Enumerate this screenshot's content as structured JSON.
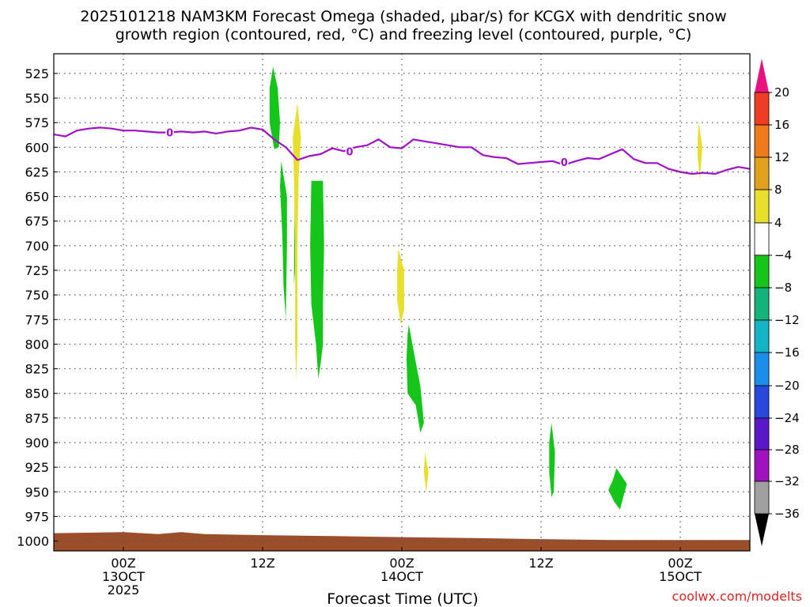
{
  "title": {
    "line1": "2025101218 NAM3KM Forecast Omega (shaded, μbar/s) for KCGX with dendritic snow",
    "line2": "growth region (contoured, red, °C) and freezing level (contoured, purple, °C)"
  },
  "credit": "coolwx.com/modelts",
  "chart_data": {
    "type": "heatmap",
    "xlabel": "Forecast Time (UTC)",
    "ylabel": "",
    "x_unit": "forecast hour from 2025-10-12 18Z",
    "xlim": [
      0,
      60
    ],
    "x_ticks": [
      {
        "hour": 6,
        "lines": [
          "00Z",
          "13OCT",
          "2025"
        ]
      },
      {
        "hour": 18,
        "lines": [
          "12Z"
        ]
      },
      {
        "hour": 30,
        "lines": [
          "00Z",
          "14OCT"
        ]
      },
      {
        "hour": 42,
        "lines": [
          "12Z"
        ]
      },
      {
        "hour": 54,
        "lines": [
          "00Z",
          "15OCT"
        ]
      }
    ],
    "ylim": [
      1010,
      505
    ],
    "y_ticks": [
      525,
      550,
      575,
      600,
      625,
      650,
      675,
      700,
      725,
      750,
      775,
      800,
      825,
      850,
      875,
      900,
      925,
      950,
      975,
      1000
    ],
    "grid": true,
    "colorbar": {
      "labels": [
        "20",
        "16",
        "12",
        "8",
        "4",
        "−4",
        "−8",
        "−12",
        "−16",
        "−20",
        "−24",
        "−28",
        "−32",
        "−36"
      ],
      "bands": [
        {
          "range": "> 20",
          "color": "#e8127e"
        },
        {
          "range": "16 to 20",
          "color": "#f03c24"
        },
        {
          "range": "12 to 16",
          "color": "#ee7a1c"
        },
        {
          "range": "8 to 12",
          "color": "#e0a21c"
        },
        {
          "range": "4 to 8",
          "color": "#e6e02c"
        },
        {
          "range": "-4 to 4",
          "color": "#ffffff"
        },
        {
          "range": "-8 to -4",
          "color": "#16c51a"
        },
        {
          "range": "-12 to -8",
          "color": "#12b47c"
        },
        {
          "range": "-16 to -12",
          "color": "#14b4c4"
        },
        {
          "range": "-20 to -16",
          "color": "#1a8ee8"
        },
        {
          "range": "-24 to -20",
          "color": "#2a48de"
        },
        {
          "range": "-28 to -24",
          "color": "#5a18c8"
        },
        {
          "range": "-32 to -28",
          "color": "#a012c0"
        },
        {
          "range": "-36 to -32",
          "color": "#a0a0a0"
        },
        {
          "range": "< -36",
          "color": "#000000"
        }
      ]
    },
    "series": [
      {
        "kind": "freezing-level-contour",
        "label_value": "0",
        "color": "#a010c8",
        "points": [
          [
            0.0,
            587
          ],
          [
            1.0,
            589
          ],
          [
            2.0,
            583
          ],
          [
            3.0,
            581
          ],
          [
            4.0,
            580
          ],
          [
            5.0,
            581
          ],
          [
            6.0,
            583
          ],
          [
            7.0,
            583
          ],
          [
            8.0,
            584
          ],
          [
            9.0,
            585
          ],
          [
            10.0,
            585
          ],
          [
            11.0,
            584
          ],
          [
            12.0,
            585
          ],
          [
            13.0,
            584
          ],
          [
            14.0,
            586
          ],
          [
            15.0,
            584
          ],
          [
            16.0,
            583
          ],
          [
            17.0,
            580
          ],
          [
            18.0,
            582
          ],
          [
            19.0,
            592
          ],
          [
            20.0,
            600
          ],
          [
            21.0,
            613
          ],
          [
            22.0,
            609
          ],
          [
            23.0,
            607
          ],
          [
            24.0,
            601
          ],
          [
            25.0,
            604
          ],
          [
            26.0,
            600
          ],
          [
            27.0,
            598
          ],
          [
            28.0,
            592
          ],
          [
            29.0,
            600
          ],
          [
            30.0,
            601
          ],
          [
            31.0,
            592
          ],
          [
            32.0,
            594
          ],
          [
            33.0,
            596
          ],
          [
            34.0,
            598
          ],
          [
            35.0,
            600
          ],
          [
            36.0,
            600
          ],
          [
            37.0,
            608
          ],
          [
            38.0,
            610
          ],
          [
            39.0,
            611
          ],
          [
            40.0,
            617
          ],
          [
            41.0,
            616
          ],
          [
            42.0,
            615
          ],
          [
            43.0,
            614
          ],
          [
            44.0,
            618
          ],
          [
            45.0,
            614
          ],
          [
            46.0,
            611
          ],
          [
            47.0,
            612
          ],
          [
            48.0,
            607
          ],
          [
            49.0,
            602
          ],
          [
            50.0,
            612
          ],
          [
            51.0,
            616
          ],
          [
            52.0,
            616
          ],
          [
            53.0,
            622
          ],
          [
            54.0,
            625
          ],
          [
            55.0,
            627
          ],
          [
            56.0,
            626
          ],
          [
            57.0,
            627
          ],
          [
            58.0,
            623
          ],
          [
            59.0,
            620
          ],
          [
            60.0,
            622
          ]
        ],
        "label_positions": [
          [
            10.0,
            585
          ],
          [
            25.5,
            604
          ],
          [
            44.0,
            615
          ]
        ]
      }
    ],
    "omega_regions": [
      {
        "band": "-8 to -4",
        "color": "#16c51a",
        "shape": [
          [
            18.9,
            518
          ],
          [
            19.3,
            540
          ],
          [
            19.5,
            575
          ],
          [
            19.4,
            600
          ],
          [
            19.0,
            602
          ],
          [
            18.6,
            575
          ],
          [
            18.6,
            540
          ]
        ]
      },
      {
        "band": "-8 to -4",
        "color": "#16c51a",
        "shape": [
          [
            19.6,
            614
          ],
          [
            20.1,
            650
          ],
          [
            20.1,
            700
          ],
          [
            20.0,
            775
          ],
          [
            19.8,
            740
          ],
          [
            19.7,
            690
          ],
          [
            19.5,
            640
          ]
        ]
      },
      {
        "band": "-8 to -4",
        "color": "#16c51a",
        "shape": [
          [
            20.8,
            593
          ],
          [
            21.0,
            612
          ],
          [
            20.8,
            650
          ],
          [
            20.8,
            700
          ],
          [
            20.8,
            725
          ],
          [
            20.7,
            740
          ]
        ]
      },
      {
        "band": "-8 to -4",
        "color": "#16c51a",
        "shape": [
          [
            22.2,
            634
          ],
          [
            23.2,
            634
          ],
          [
            23.3,
            700
          ],
          [
            23.2,
            760
          ],
          [
            23.2,
            800
          ],
          [
            23.0,
            820
          ],
          [
            22.8,
            835
          ],
          [
            22.6,
            800
          ],
          [
            22.2,
            760
          ],
          [
            22.1,
            700
          ]
        ]
      },
      {
        "band": "4 to 8",
        "color": "#e6e02c",
        "shape": [
          [
            21.0,
            555
          ],
          [
            21.3,
            590
          ],
          [
            21.1,
            630
          ],
          [
            21.0,
            700
          ],
          [
            21.0,
            800
          ],
          [
            20.9,
            835
          ],
          [
            20.8,
            800
          ],
          [
            20.8,
            700
          ],
          [
            20.7,
            630
          ],
          [
            20.6,
            590
          ]
        ]
      },
      {
        "band": "4 to 8",
        "color": "#e6e02c",
        "shape": [
          [
            29.7,
            703
          ],
          [
            30.2,
            725
          ],
          [
            30.2,
            765
          ],
          [
            29.9,
            780
          ],
          [
            29.6,
            755
          ],
          [
            29.6,
            725
          ]
        ]
      },
      {
        "band": "-8 to -4",
        "color": "#16c51a",
        "shape": [
          [
            30.6,
            780
          ],
          [
            31.1,
            812
          ],
          [
            31.6,
            843
          ],
          [
            31.9,
            880
          ],
          [
            31.6,
            890
          ],
          [
            31.2,
            862
          ],
          [
            30.5,
            850
          ],
          [
            30.4,
            815
          ],
          [
            30.5,
            790
          ]
        ]
      },
      {
        "band": "4 to 8",
        "color": "#e6e02c",
        "shape": [
          [
            32.0,
            910
          ],
          [
            32.3,
            930
          ],
          [
            32.1,
            950
          ],
          [
            31.9,
            930
          ]
        ]
      },
      {
        "band": "-8 to -4",
        "color": "#16c51a",
        "shape": [
          [
            42.9,
            880
          ],
          [
            43.2,
            910
          ],
          [
            43.1,
            950
          ],
          [
            42.9,
            955
          ],
          [
            42.7,
            930
          ],
          [
            42.7,
            900
          ]
        ]
      },
      {
        "band": "-8 to -4",
        "color": "#16c51a",
        "shape": [
          [
            48.5,
            926
          ],
          [
            49.4,
            942
          ],
          [
            48.8,
            968
          ],
          [
            48.3,
            960
          ],
          [
            47.8,
            948
          ],
          [
            48.2,
            938
          ]
        ]
      },
      {
        "band": "4 to 8",
        "color": "#e6e02c",
        "shape": [
          [
            55.6,
            575
          ],
          [
            55.9,
            600
          ],
          [
            55.7,
            633
          ],
          [
            55.5,
            610
          ],
          [
            55.5,
            590
          ]
        ]
      }
    ],
    "terrain": {
      "color": "#9a4e2a",
      "points": [
        [
          0,
          992
        ],
        [
          6,
          991
        ],
        [
          9,
          993
        ],
        [
          11,
          991
        ],
        [
          13,
          993
        ],
        [
          18,
          994
        ],
        [
          24,
          995
        ],
        [
          30,
          996
        ],
        [
          36,
          997
        ],
        [
          42,
          998
        ],
        [
          48,
          999
        ],
        [
          54,
          999
        ],
        [
          60,
          999
        ]
      ]
    }
  }
}
